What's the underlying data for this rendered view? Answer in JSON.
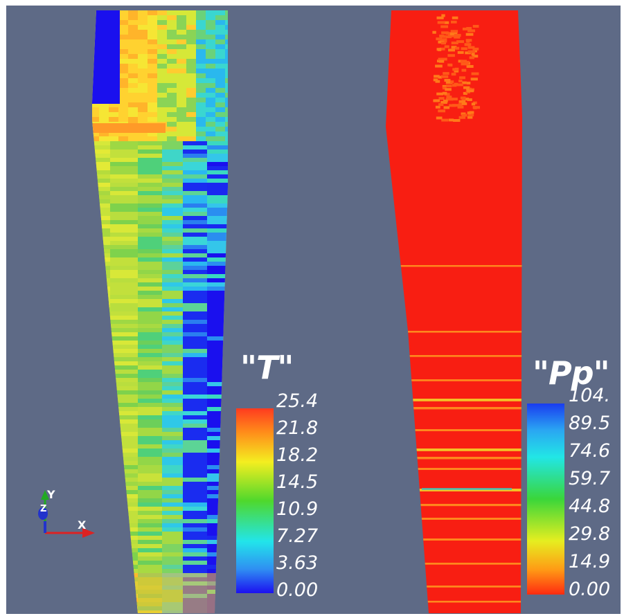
{
  "viewport": {
    "background": "#5e6a86"
  },
  "left_plot": {
    "field": "T",
    "title": "\"T\"",
    "range": [
      0.0,
      25.4
    ],
    "colormap": "rainbow-blue-to-red",
    "scalar_bar_labels": [
      "25.4",
      "21.8",
      "18.2",
      "14.5",
      "10.9",
      "7.27",
      "3.63",
      "0.00"
    ]
  },
  "right_plot": {
    "field": "Pp",
    "title": "\"Pp\"",
    "range": [
      0.0,
      104.0
    ],
    "colormap": "rainbow-red-to-blue",
    "scalar_bar_labels": [
      "104.",
      "89.5",
      "74.6",
      "59.7",
      "44.8",
      "29.8",
      "14.9",
      "0.00"
    ]
  },
  "axes_triad": {
    "x_label": "X",
    "y_label": "Y",
    "z_label": "Z",
    "x_color": "#dd2222",
    "y_color": "#22aa22",
    "z_color": "#2233cc"
  }
}
